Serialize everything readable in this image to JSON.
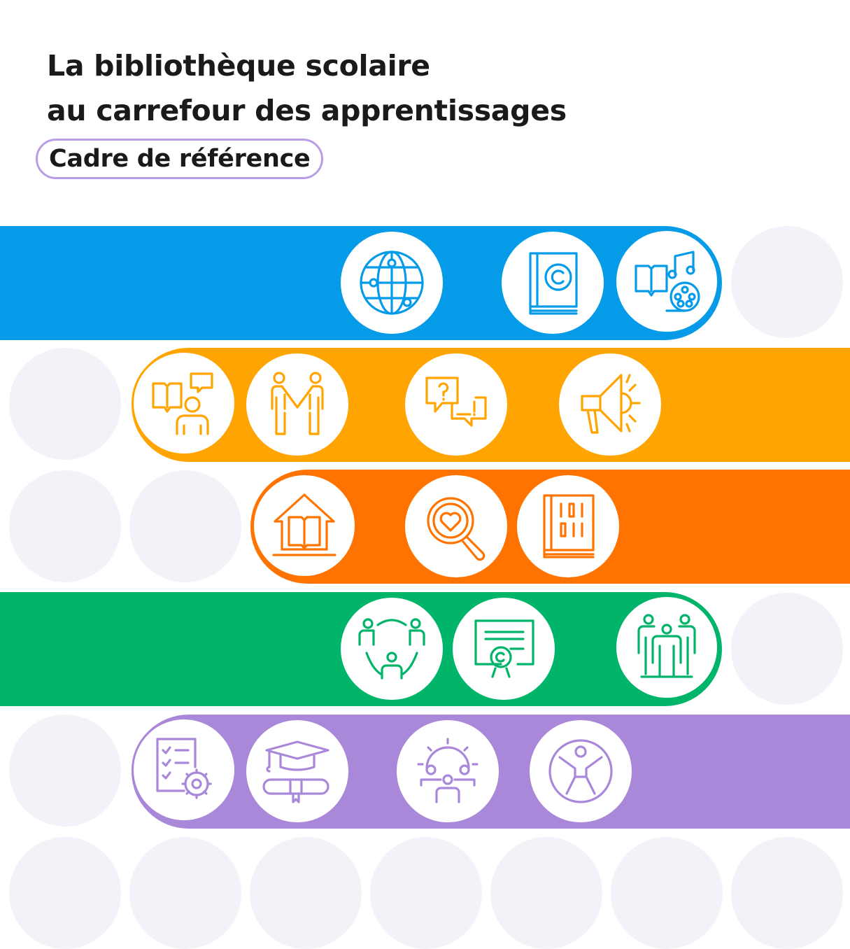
{
  "title": {
    "line1": "La bibliothèque scolaire",
    "line2": "au carrefour des apprentissages"
  },
  "subtitle": "Cadre de référence",
  "colors": {
    "blue": "#069be8",
    "yellow_orange": "#ffa400",
    "orange": "#ff7300",
    "green": "#00b46a",
    "purple": "#a987d9",
    "placeholder_gray": "#f4f2f9",
    "pill_border": "#b99de6"
  },
  "rows": [
    {
      "color": "blue",
      "icons": [
        "globe-network-icon",
        "copyright-book-icon",
        "book-music-film-icon"
      ]
    },
    {
      "color": "yellow_orange",
      "icons": [
        "reading-discussion-icon",
        "people-holding-hands-icon",
        "question-answer-bubbles-icon",
        "megaphone-icon"
      ]
    },
    {
      "color": "orange",
      "icons": [
        "house-book-icon",
        "heart-magnifier-icon",
        "binary-book-icon"
      ]
    },
    {
      "color": "green",
      "icons": [
        "group-circle-icon",
        "certificate-icon",
        "team-people-icon"
      ]
    },
    {
      "color": "purple",
      "icons": [
        "checklist-gear-icon",
        "graduation-diploma-icon",
        "gear-team-icon",
        "accessibility-icon"
      ]
    }
  ]
}
